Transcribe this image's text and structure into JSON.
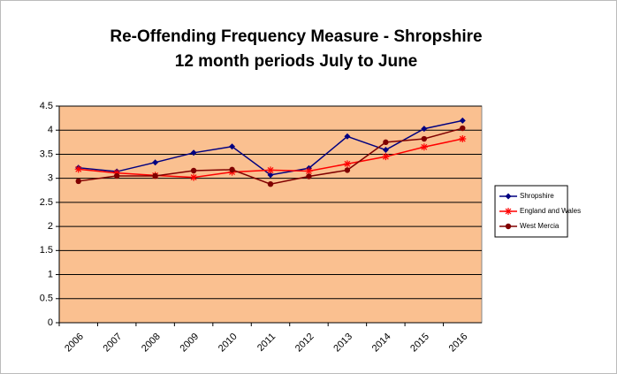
{
  "chart_data": {
    "type": "line",
    "title": "Re-Offending Frequency Measure - Shropshire",
    "subtitle": "12 month periods July to June",
    "categories": [
      "2006",
      "2007",
      "2008",
      "2009",
      "2010",
      "2011",
      "2012",
      "2013",
      "2014",
      "2015",
      "2016"
    ],
    "series": [
      {
        "name": "Shropshire",
        "color": "#000080",
        "marker": "diamond",
        "values": [
          3.22,
          3.14,
          3.33,
          3.53,
          3.66,
          3.07,
          3.21,
          3.87,
          3.59,
          4.03,
          4.2
        ]
      },
      {
        "name": "England and Wales",
        "color": "#ff0000",
        "marker": "star",
        "values": [
          3.19,
          3.11,
          3.06,
          3.02,
          3.13,
          3.17,
          3.15,
          3.3,
          3.45,
          3.65,
          3.82
        ]
      },
      {
        "name": "West Mercia",
        "color": "#800000",
        "marker": "circle",
        "values": [
          2.94,
          3.05,
          3.05,
          3.16,
          3.18,
          2.88,
          3.04,
          3.17,
          3.75,
          3.82,
          4.04
        ]
      }
    ],
    "ylim": [
      0,
      4.5
    ],
    "yticks": [
      0,
      0.5,
      1,
      1.5,
      2,
      2.5,
      3,
      3.5,
      4,
      4.5
    ],
    "grid": true,
    "legend": "right",
    "plot_background": "#fac090"
  }
}
